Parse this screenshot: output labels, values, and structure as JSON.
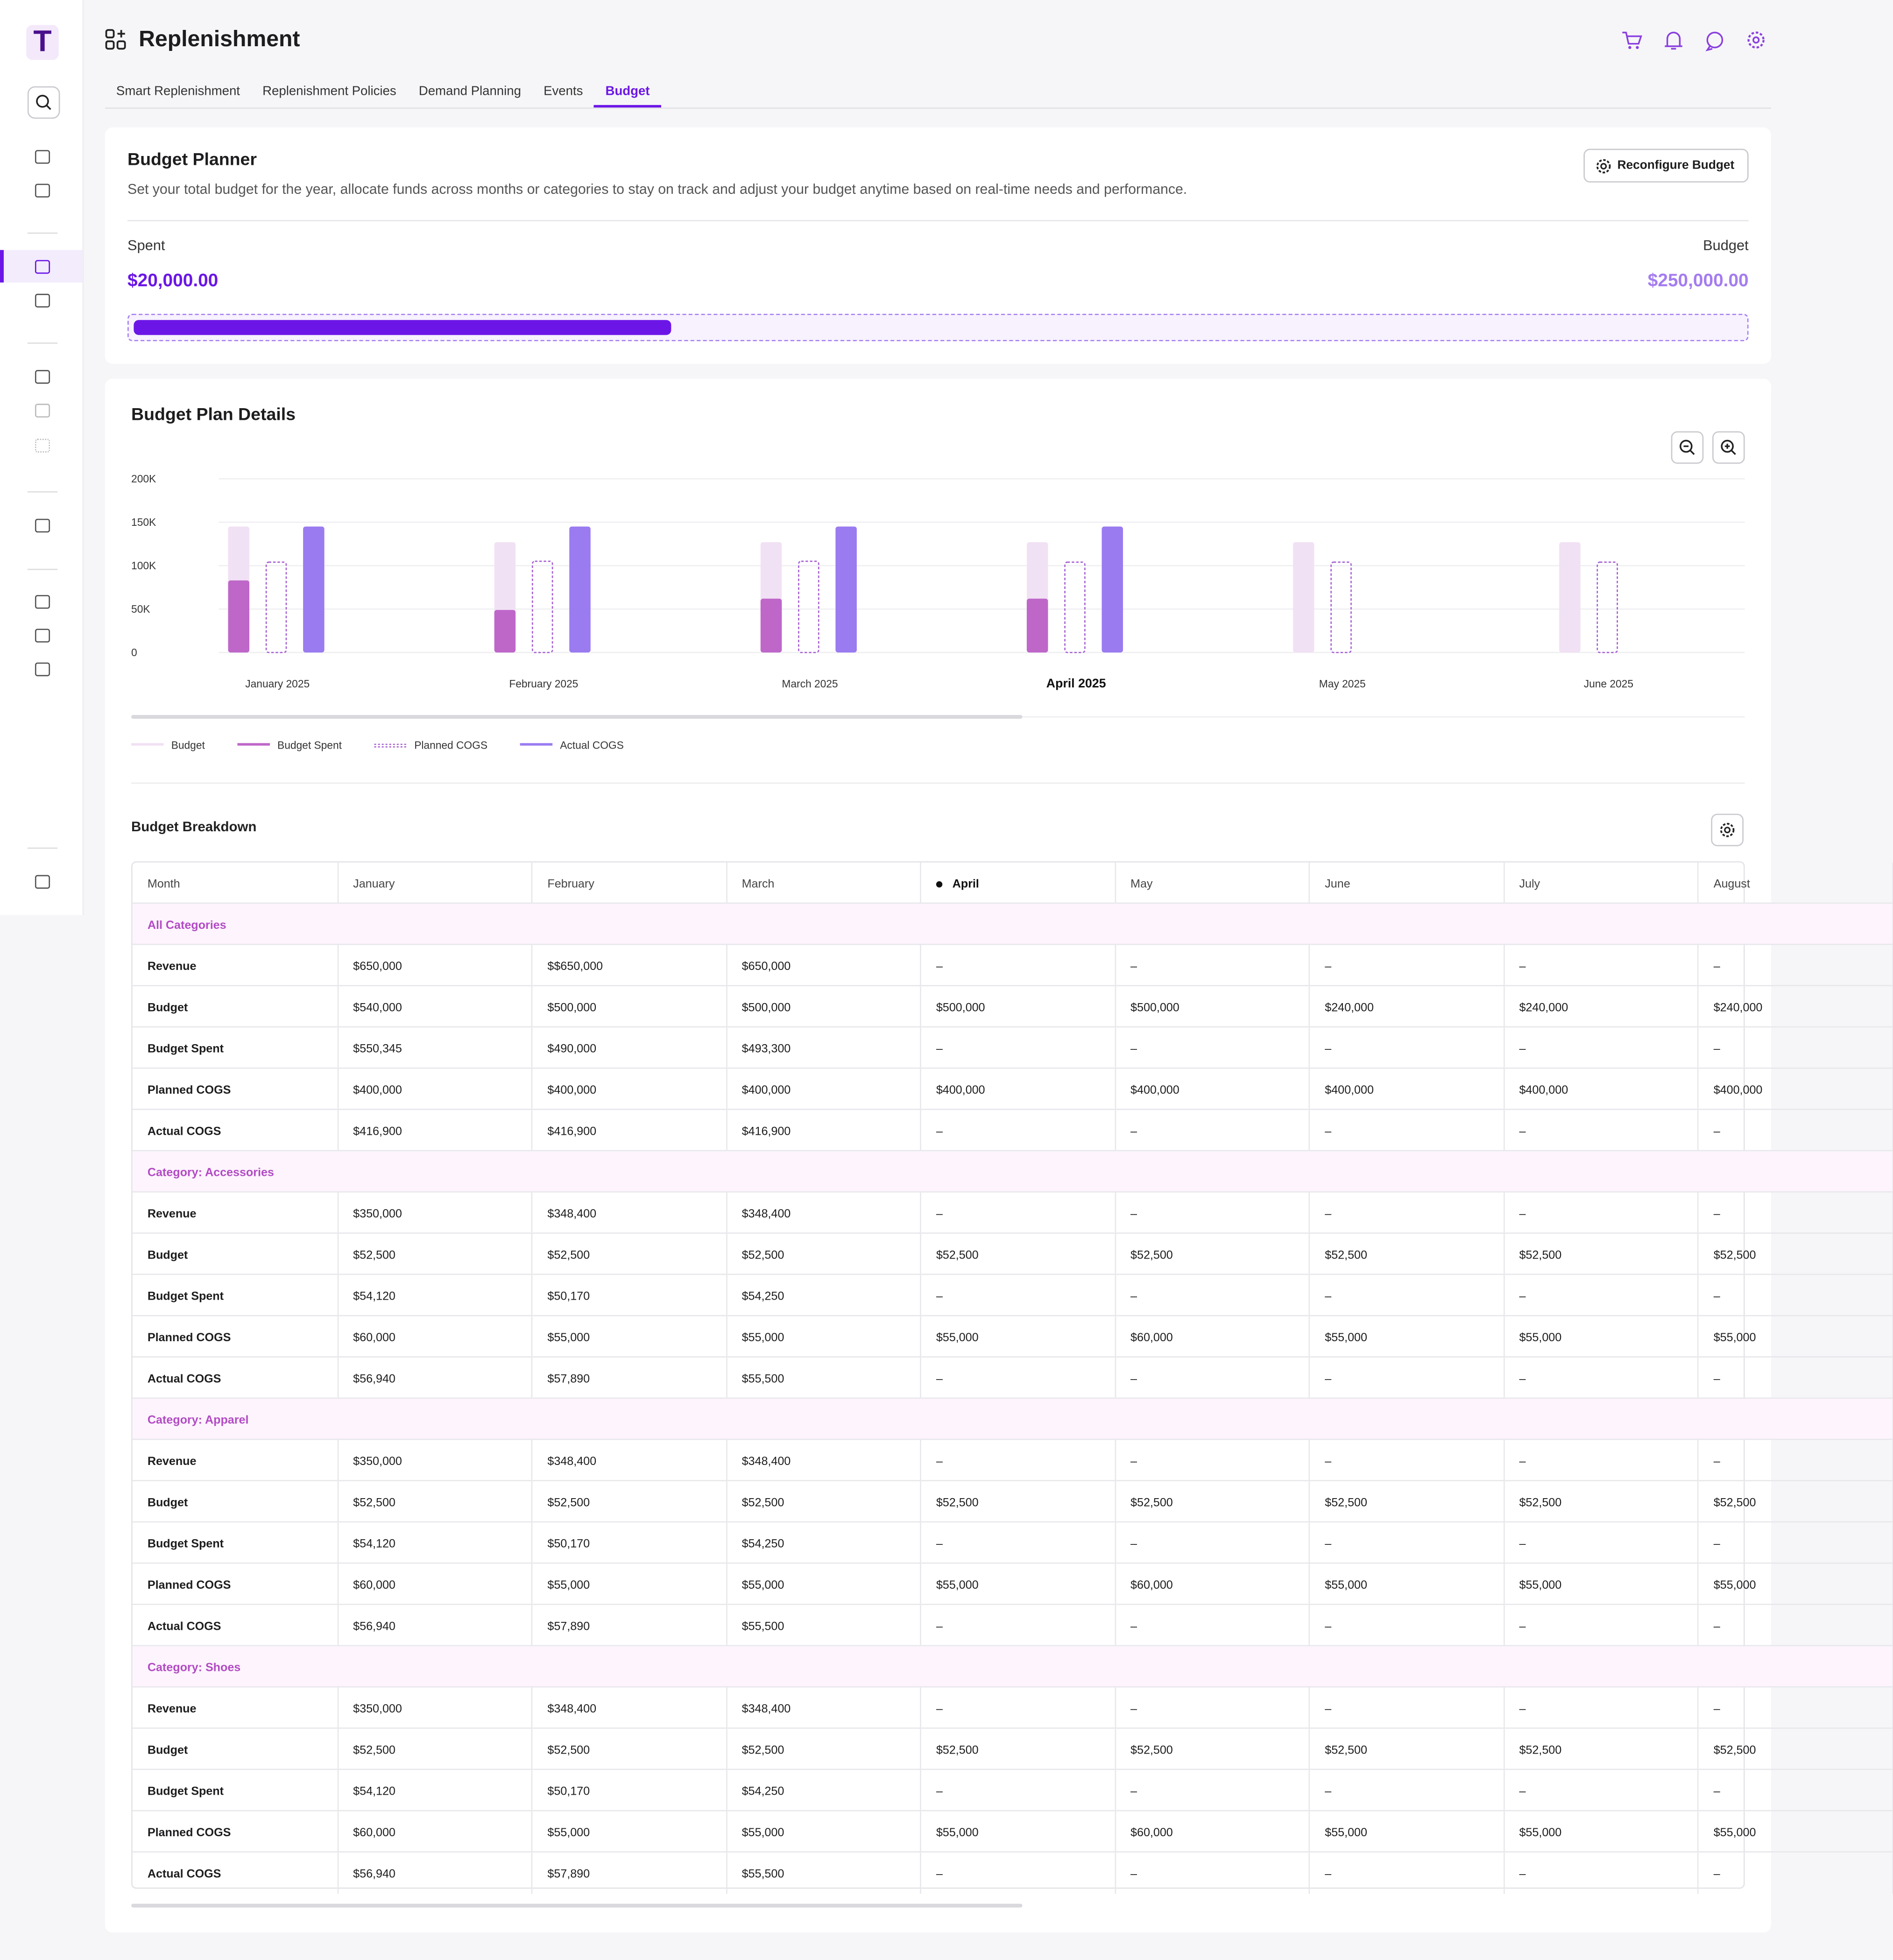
{
  "app": {
    "logo": "T",
    "title": "Replenishment",
    "tabs": [
      "Smart Replenishment",
      "Replenishment Policies",
      "Demand Planning",
      "Events",
      "Budget"
    ],
    "active_tab": 4
  },
  "planner": {
    "title": "Budget Planner",
    "description": "Set your total budget for the year, allocate funds across months or categories to stay on track and adjust your budget anytime based on real-time needs and performance.",
    "button": "Reconfigure Budget",
    "spent_label": "Spent",
    "spent": "$20,000.00",
    "budget_label": "Budget",
    "budget": "$250,000.00"
  },
  "details": {
    "title": "Budget Plan Details"
  },
  "chart_data": {
    "type": "bar",
    "categories": [
      "January 2025",
      "February 2025",
      "March 2025",
      "April 2025",
      "May 2025",
      "June 2025"
    ],
    "highlight": 3,
    "ylim": [
      0,
      200000
    ],
    "yticks": [
      0,
      {
        "value": 50000,
        "label": "50K"
      },
      {
        "value": 100000,
        "label": "100K"
      },
      {
        "value": 150000,
        "label": "150K"
      },
      {
        "value": 200000,
        "label": "200K"
      }
    ],
    "grid": true,
    "series": [
      {
        "name": "Budget",
        "color": "#f1e1f4",
        "values": [
          145000,
          127000,
          127000,
          127000,
          127000,
          127000
        ]
      },
      {
        "name": "Budget Spent",
        "color": "#be67c9",
        "values": [
          83000,
          49000,
          62000,
          62000,
          null,
          null
        ]
      },
      {
        "name": "Planned COGS",
        "color": "#a55fd2",
        "style": "dotted",
        "values": [
          104000,
          105000,
          105000,
          104000,
          104000,
          104000
        ]
      },
      {
        "name": "Actual COGS",
        "color": "#9a7bf0",
        "values": [
          145000,
          145000,
          145000,
          145000,
          null,
          null
        ]
      }
    ]
  },
  "breakdown": {
    "title": "Budget Breakdown",
    "columns": [
      "Month",
      "January",
      "February",
      "March",
      "April",
      "May",
      "June",
      "July",
      "August"
    ],
    "current_column": 4,
    "groups": [
      {
        "title": "All Categories",
        "rows": [
          [
            "Revenue",
            "$650,000",
            "$$650,000",
            "$650,000",
            "–",
            "–",
            "–",
            "–",
            "–"
          ],
          [
            "Budget",
            "$540,000",
            "$500,000",
            "$500,000",
            "$500,000",
            "$500,000",
            "$240,000",
            "$240,000",
            "$240,000"
          ],
          [
            "Budget Spent",
            "$550,345",
            "$490,000",
            "$493,300",
            "–",
            "–",
            "–",
            "–",
            "–"
          ],
          [
            "Planned COGS",
            "$400,000",
            "$400,000",
            "$400,000",
            "$400,000",
            "$400,000",
            "$400,000",
            "$400,000",
            "$400,000"
          ],
          [
            "Actual COGS",
            "$416,900",
            "$416,900",
            "$416,900",
            "–",
            "–",
            "–",
            "–",
            "–"
          ]
        ]
      },
      {
        "title": "Category: Accessories",
        "rows": [
          [
            "Revenue",
            "$350,000",
            "$348,400",
            "$348,400",
            "–",
            "–",
            "–",
            "–",
            "–"
          ],
          [
            "Budget",
            "$52,500",
            "$52,500",
            "$52,500",
            "$52,500",
            "$52,500",
            "$52,500",
            "$52,500",
            "$52,500"
          ],
          [
            "Budget Spent",
            "$54,120",
            "$50,170",
            "$54,250",
            "–",
            "–",
            "–",
            "–",
            "–"
          ],
          [
            "Planned COGS",
            "$60,000",
            "$55,000",
            "$55,000",
            "$55,000",
            "$60,000",
            "$55,000",
            "$55,000",
            "$55,000"
          ],
          [
            "Actual COGS",
            "$56,940",
            "$57,890",
            "$55,500",
            "–",
            "–",
            "–",
            "–",
            "–"
          ]
        ]
      },
      {
        "title": "Category: Apparel",
        "rows": [
          [
            "Revenue",
            "$350,000",
            "$348,400",
            "$348,400",
            "–",
            "–",
            "–",
            "–",
            "–"
          ],
          [
            "Budget",
            "$52,500",
            "$52,500",
            "$52,500",
            "$52,500",
            "$52,500",
            "$52,500",
            "$52,500",
            "$52,500"
          ],
          [
            "Budget Spent",
            "$54,120",
            "$50,170",
            "$54,250",
            "–",
            "–",
            "–",
            "–",
            "–"
          ],
          [
            "Planned COGS",
            "$60,000",
            "$55,000",
            "$55,000",
            "$55,000",
            "$60,000",
            "$55,000",
            "$55,000",
            "$55,000"
          ],
          [
            "Actual COGS",
            "$56,940",
            "$57,890",
            "$55,500",
            "–",
            "–",
            "–",
            "–",
            "–"
          ]
        ]
      },
      {
        "title": "Category: Shoes",
        "rows": [
          [
            "Revenue",
            "$350,000",
            "$348,400",
            "$348,400",
            "–",
            "–",
            "–",
            "–",
            "–"
          ],
          [
            "Budget",
            "$52,500",
            "$52,500",
            "$52,500",
            "$52,500",
            "$52,500",
            "$52,500",
            "$52,500",
            "$52,500"
          ],
          [
            "Budget Spent",
            "$54,120",
            "$50,170",
            "$54,250",
            "–",
            "–",
            "–",
            "–",
            "–"
          ],
          [
            "Planned COGS",
            "$60,000",
            "$55,000",
            "$55,000",
            "$55,000",
            "$60,000",
            "$55,000",
            "$55,000",
            "$55,000"
          ],
          [
            "Actual COGS",
            "$56,940",
            "$57,890",
            "$55,500",
            "–",
            "–",
            "–",
            "–",
            "–"
          ]
        ]
      }
    ]
  }
}
